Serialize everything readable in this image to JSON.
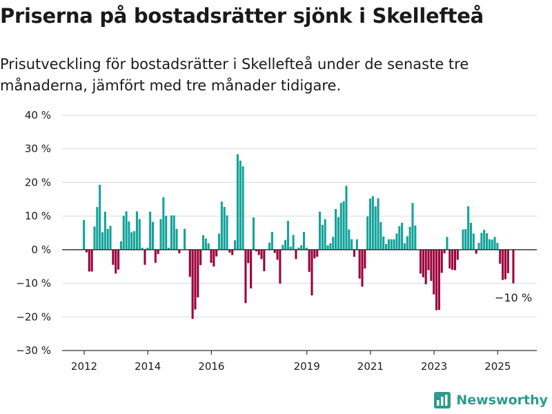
{
  "title": "Priserna på bostadsrätter sjönk i Skellefteå",
  "subtitle": "Prisutveckling för bostadsrätter i Skellefteå under de senaste tre månaderna, jämfört med tre månader tidigare.",
  "brand": {
    "name": "Newsworthy",
    "icon": "bar-chart-logo-icon"
  },
  "colors": {
    "positive": "#12a39a",
    "negative": "#9b0039",
    "grid": "#d9d9d9",
    "axis": "#333333",
    "text": "#1a1a1a"
  },
  "chart_data": {
    "type": "bar",
    "title": "Priserna på bostadsrätter sjönk i Skellefteå",
    "xlabel": "",
    "ylabel": "",
    "ylim": [
      -30,
      40
    ],
    "yticks": [
      40,
      30,
      20,
      10,
      0,
      -10,
      -20,
      -30
    ],
    "ytick_labels": [
      "40 %",
      "30 %",
      "20 %",
      "10 %",
      "0 %",
      "−10 %",
      "−20 %",
      "−30 %"
    ],
    "xticks": [
      2012,
      2014,
      2016,
      2019,
      2021,
      2023,
      2025
    ],
    "xtick_labels": [
      "2012",
      "2014",
      "2016",
      "2019",
      "2021",
      "2023",
      "2025"
    ],
    "x_start": 2012,
    "periods_per_year": 12,
    "grid": true,
    "annotation": {
      "text": "−10 %"
    },
    "values": [
      8.8,
      -0.8,
      -6.5,
      -6.5,
      6.9,
      12.7,
      19.3,
      5.2,
      11.3,
      6.2,
      7.1,
      -4.5,
      -7.1,
      -5.9,
      2.5,
      10.1,
      11.4,
      8.4,
      5.2,
      5.5,
      11.4,
      9.1,
      0.6,
      -4.5,
      0.6,
      11.3,
      8.3,
      -3.9,
      -1.3,
      9.1,
      15.6,
      10.1,
      0.6,
      10.2,
      10.2,
      6.2,
      -1.1,
      0,
      6.2,
      0,
      -8.1,
      -20.6,
      -17.8,
      -14.2,
      -4.6,
      4.3,
      3.3,
      1.9,
      -3.9,
      -5.0,
      -2.0,
      4.8,
      14.3,
      12.7,
      10.2,
      -0.9,
      -1.6,
      2.8,
      28.4,
      26.5,
      24.8,
      -15.9,
      -4.0,
      -11.5,
      9.6,
      -0.5,
      -1.6,
      -2.8,
      -6.4,
      0,
      2.1,
      5.3,
      -1.0,
      -3.0,
      -10.1,
      1.4,
      2.9,
      8.6,
      0.9,
      4.4,
      -2.8,
      0.6,
      1.3,
      5.3,
      0.6,
      -6.6,
      -13.6,
      -2.6,
      -2.1,
      11.3,
      7.4,
      9.1,
      1.3,
      1.9,
      3.8,
      12.1,
      9.7,
      13.9,
      14.4,
      19.0,
      6.0,
      3.1,
      -2.1,
      3.1,
      -8.6,
      -11.0,
      -5.6,
      9.9,
      15.2,
      15.9,
      12.9,
      15.3,
      8.2,
      3.9,
      1.7,
      3.1,
      3.1,
      3.1,
      4.8,
      7.0,
      8.0,
      1.9,
      4.0,
      6.8,
      13.9,
      7.2,
      0,
      -7.1,
      -8.2,
      -10.3,
      -6.1,
      -9.3,
      -13.3,
      -18.0,
      -17.9,
      -6.9,
      -1.1,
      3.8,
      -5.6,
      -6.0,
      -6.1,
      -3.0,
      0,
      6.0,
      6.1,
      12.9,
      8.0,
      4.8,
      -1.2,
      2.0,
      5.0,
      5.9,
      4.9,
      3.1,
      3.0,
      3.8,
      2.0,
      -4.2,
      -9.0,
      -8.8,
      -7.0,
      0,
      -10.0
    ]
  }
}
